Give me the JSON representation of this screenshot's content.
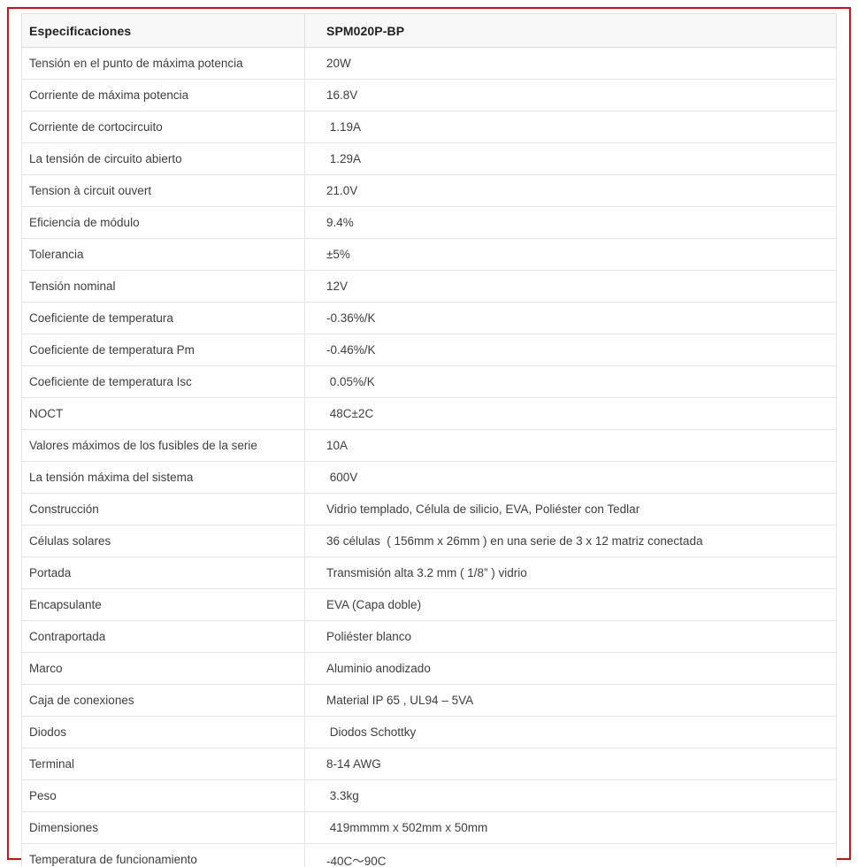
{
  "meta": {
    "frame_border_color": "#d40d0d",
    "table_border_color": "#e0e0e0",
    "header_background": "#f8f8f8",
    "text_color": "#3e3e3e"
  },
  "table": {
    "header": {
      "col1": "Especificaciones",
      "col2": "SPM020P-BP"
    },
    "rows": [
      {
        "label": "Tensión en el punto de máxima potencia",
        "value": "20W"
      },
      {
        "label": "Corriente de máxima potencia",
        "value": "16.8V"
      },
      {
        "label": "Corriente de cortocircuito",
        "value": " 1.19A"
      },
      {
        "label": "La tensión de circuito abierto",
        "value": " 1.29A"
      },
      {
        "label": "Tension à circuit ouvert",
        "value": "21.0V"
      },
      {
        "label": "Eficiencia de módulo",
        "value": "9.4%"
      },
      {
        "label": "Tolerancia",
        "value": "±5%"
      },
      {
        "label": "Tensión nominal",
        "value": "12V"
      },
      {
        "label": "Coeficiente de temperatura",
        "value": "-0.36%/K"
      },
      {
        "label": "Coeficiente de temperatura Pm",
        "value": "-0.46%/K"
      },
      {
        "label": "Coeficiente de temperatura Isc",
        "value": " 0.05%/K"
      },
      {
        "label": "NOCT",
        "value": " 48C±2C"
      },
      {
        "label": "Valores máximos de los fusibles de la serie",
        "value": "10A"
      },
      {
        "label": "La tensión máxima del sistema",
        "value": " 600V"
      },
      {
        "label": "Construcción",
        "value": "Vidrio templado, Célula de silicio, EVA, Poliéster con Tedlar"
      },
      {
        "label": "Células solares",
        "value": "36 células  ( 156mm x 26mm ) en una serie de 3 x 12 matriz conectada"
      },
      {
        "label": "Portada",
        "value": "Transmisión alta 3.2 mm ( 1/8” ) vidrio"
      },
      {
        "label": "Encapsulante",
        "value": "EVA (Capa doble)"
      },
      {
        "label": "Contraportada",
        "value": "Poliéster blanco"
      },
      {
        "label": "Marco",
        "value": "Aluminio anodizado"
      },
      {
        "label": "Caja de conexiones",
        "value": "Material IP 65 , UL94 – 5VA"
      },
      {
        "label": "Diodos",
        "value": " Diodos Schottky"
      },
      {
        "label": "Terminal",
        "value": "8-14 AWG"
      },
      {
        "label": "Peso",
        "value": " 3.3kg"
      },
      {
        "label": "Dimensiones",
        "value": " 419mmmm x 502mm x 50mm"
      },
      {
        "label": "Temperatura de funcionamiento",
        "value": "-40C～90C"
      }
    ]
  }
}
